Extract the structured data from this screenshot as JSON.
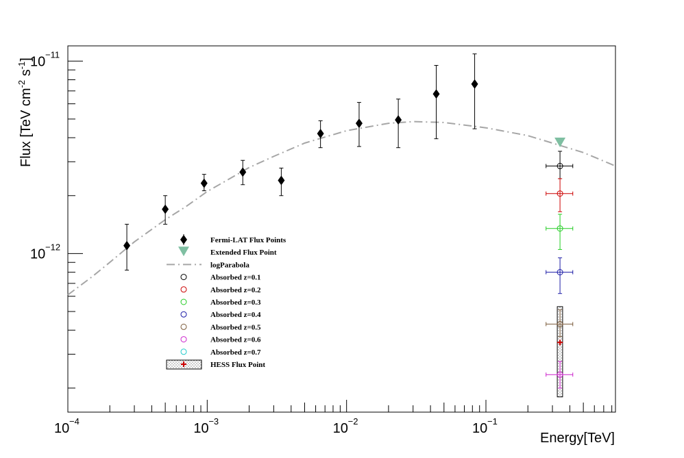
{
  "chart_data": {
    "type": "scatter",
    "title": "",
    "xlabel": "Energy[TeV]",
    "ylabel_parts": [
      "Flux [TeV cm",
      "-2",
      " s",
      "-1",
      "]"
    ],
    "x_scale": "log",
    "y_scale": "log",
    "xlim": [
      0.0001,
      0.85
    ],
    "ylim": [
      1.5e-13,
      1.2e-11
    ],
    "x_tick_labels": [
      {
        "value": 0.0001,
        "base": "10",
        "exp": "−4"
      },
      {
        "value": 0.001,
        "base": "10",
        "exp": "−3"
      },
      {
        "value": 0.01,
        "base": "10",
        "exp": "−2"
      },
      {
        "value": 0.1,
        "base": "10",
        "exp": "−1"
      }
    ],
    "y_tick_labels": [
      {
        "value": 1e-12,
        "base": "10",
        "exp": "−12"
      },
      {
        "value": 1e-11,
        "base": "10",
        "exp": "−11"
      }
    ],
    "series": [
      {
        "name": "Fermi-LAT Flux Points",
        "marker": "diamond",
        "color": "#000000",
        "points": [
          {
            "x": 0.000265,
            "y": 1.1e-12,
            "ylo": 8.2e-13,
            "yhi": 1.42e-12
          },
          {
            "x": 0.0005,
            "y": 1.7e-12,
            "ylo": 1.42e-12,
            "yhi": 2e-12
          },
          {
            "x": 0.00095,
            "y": 2.32e-12,
            "ylo": 2.12e-12,
            "yhi": 2.58e-12
          },
          {
            "x": 0.0018,
            "y": 2.65e-12,
            "ylo": 2.28e-12,
            "yhi": 3.05e-12
          },
          {
            "x": 0.0034,
            "y": 2.4e-12,
            "ylo": 2e-12,
            "yhi": 2.78e-12
          },
          {
            "x": 0.0065,
            "y": 4.2e-12,
            "ylo": 3.55e-12,
            "yhi": 4.9e-12
          },
          {
            "x": 0.0123,
            "y": 4.75e-12,
            "ylo": 3.6e-12,
            "yhi": 6.1e-12
          },
          {
            "x": 0.0235,
            "y": 4.95e-12,
            "ylo": 3.55e-12,
            "yhi": 6.35e-12
          },
          {
            "x": 0.044,
            "y": 6.75e-12,
            "ylo": 3.95e-12,
            "yhi": 9.5e-12
          },
          {
            "x": 0.083,
            "y": 7.6e-12,
            "ylo": 4.45e-12,
            "yhi": 1.09e-11
          }
        ]
      },
      {
        "name": "Extended Flux Point",
        "marker": "triangle-down",
        "color": "#7fbfa2",
        "points": [
          {
            "x": 0.34,
            "y": 3.75e-12
          }
        ]
      },
      {
        "name": "logParabola",
        "type": "curve",
        "color": "#a6a6a6",
        "points": [
          {
            "x": 0.0001,
            "y": 6.1e-13
          },
          {
            "x": 0.00015,
            "y": 7.6e-13
          },
          {
            "x": 0.0002,
            "y": 9e-13
          },
          {
            "x": 0.0003,
            "y": 1.15e-12
          },
          {
            "x": 0.0005,
            "y": 1.5e-12
          },
          {
            "x": 0.0007,
            "y": 1.75e-12
          },
          {
            "x": 0.001,
            "y": 2.1e-12
          },
          {
            "x": 0.002,
            "y": 2.8e-12
          },
          {
            "x": 0.003,
            "y": 3.2e-12
          },
          {
            "x": 0.005,
            "y": 3.75e-12
          },
          {
            "x": 0.01,
            "y": 4.35e-12
          },
          {
            "x": 0.02,
            "y": 4.75e-12
          },
          {
            "x": 0.03,
            "y": 4.85e-12
          },
          {
            "x": 0.05,
            "y": 4.8e-12
          },
          {
            "x": 0.1,
            "y": 4.5e-12
          },
          {
            "x": 0.2,
            "y": 4.1e-12
          },
          {
            "x": 0.3,
            "y": 3.75e-12
          },
          {
            "x": 0.5,
            "y": 3.35e-12
          },
          {
            "x": 0.85,
            "y": 2.85e-12
          }
        ]
      },
      {
        "name": "Absorbed z=0.1",
        "marker": "open-circle",
        "color": "#000000",
        "points": [
          {
            "x": 0.34,
            "y": 2.85e-12,
            "ylo": 2.45e-12,
            "yhi": 3.4e-12,
            "xlo": 0.27,
            "xhi": 0.42
          }
        ]
      },
      {
        "name": "Absorbed z=0.2",
        "marker": "open-circle",
        "color": "#cc0000",
        "points": [
          {
            "x": 0.34,
            "y": 2.05e-12,
            "ylo": 1.65e-12,
            "yhi": 2.45e-12,
            "xlo": 0.27,
            "xhi": 0.42
          }
        ]
      },
      {
        "name": "Absorbed z=0.3",
        "marker": "open-circle",
        "color": "#22cc22",
        "points": [
          {
            "x": 0.34,
            "y": 1.35e-12,
            "ylo": 1.05e-12,
            "yhi": 1.6e-12,
            "xlo": 0.27,
            "xhi": 0.42
          }
        ]
      },
      {
        "name": "Absorbed z=0.4",
        "marker": "open-circle",
        "color": "#1a1aa6",
        "points": [
          {
            "x": 0.34,
            "y": 8e-13,
            "ylo": 6.2e-13,
            "yhi": 9.5e-13,
            "xlo": 0.27,
            "xhi": 0.42
          }
        ]
      },
      {
        "name": "Absorbed z=0.5",
        "marker": "open-circle",
        "color": "#7a5a3a",
        "points": [
          {
            "x": 0.34,
            "y": 4.3e-13,
            "ylo": 3.7e-13,
            "yhi": 5.1e-13,
            "xlo": 0.27,
            "xhi": 0.42
          }
        ]
      },
      {
        "name": "Absorbed z=0.6",
        "marker": "open-circle",
        "color": "#cc22cc",
        "points": [
          {
            "x": 0.34,
            "y": 2.35e-13,
            "ylo": 2e-13,
            "yhi": 2.75e-13,
            "xlo": 0.27,
            "xhi": 0.42
          }
        ]
      },
      {
        "name": "Absorbed z=0.7",
        "marker": "open-circle",
        "color": "#22cccc",
        "points": []
      },
      {
        "name": "HESS Flux Point",
        "marker": "plus",
        "color": "#cc0000",
        "points": [
          {
            "x": 0.34,
            "y": 3.45e-13,
            "ylo": 1.8e-13,
            "yhi": 5.3e-13,
            "xlo": 0.325,
            "xhi": 0.355
          }
        ]
      }
    ]
  }
}
